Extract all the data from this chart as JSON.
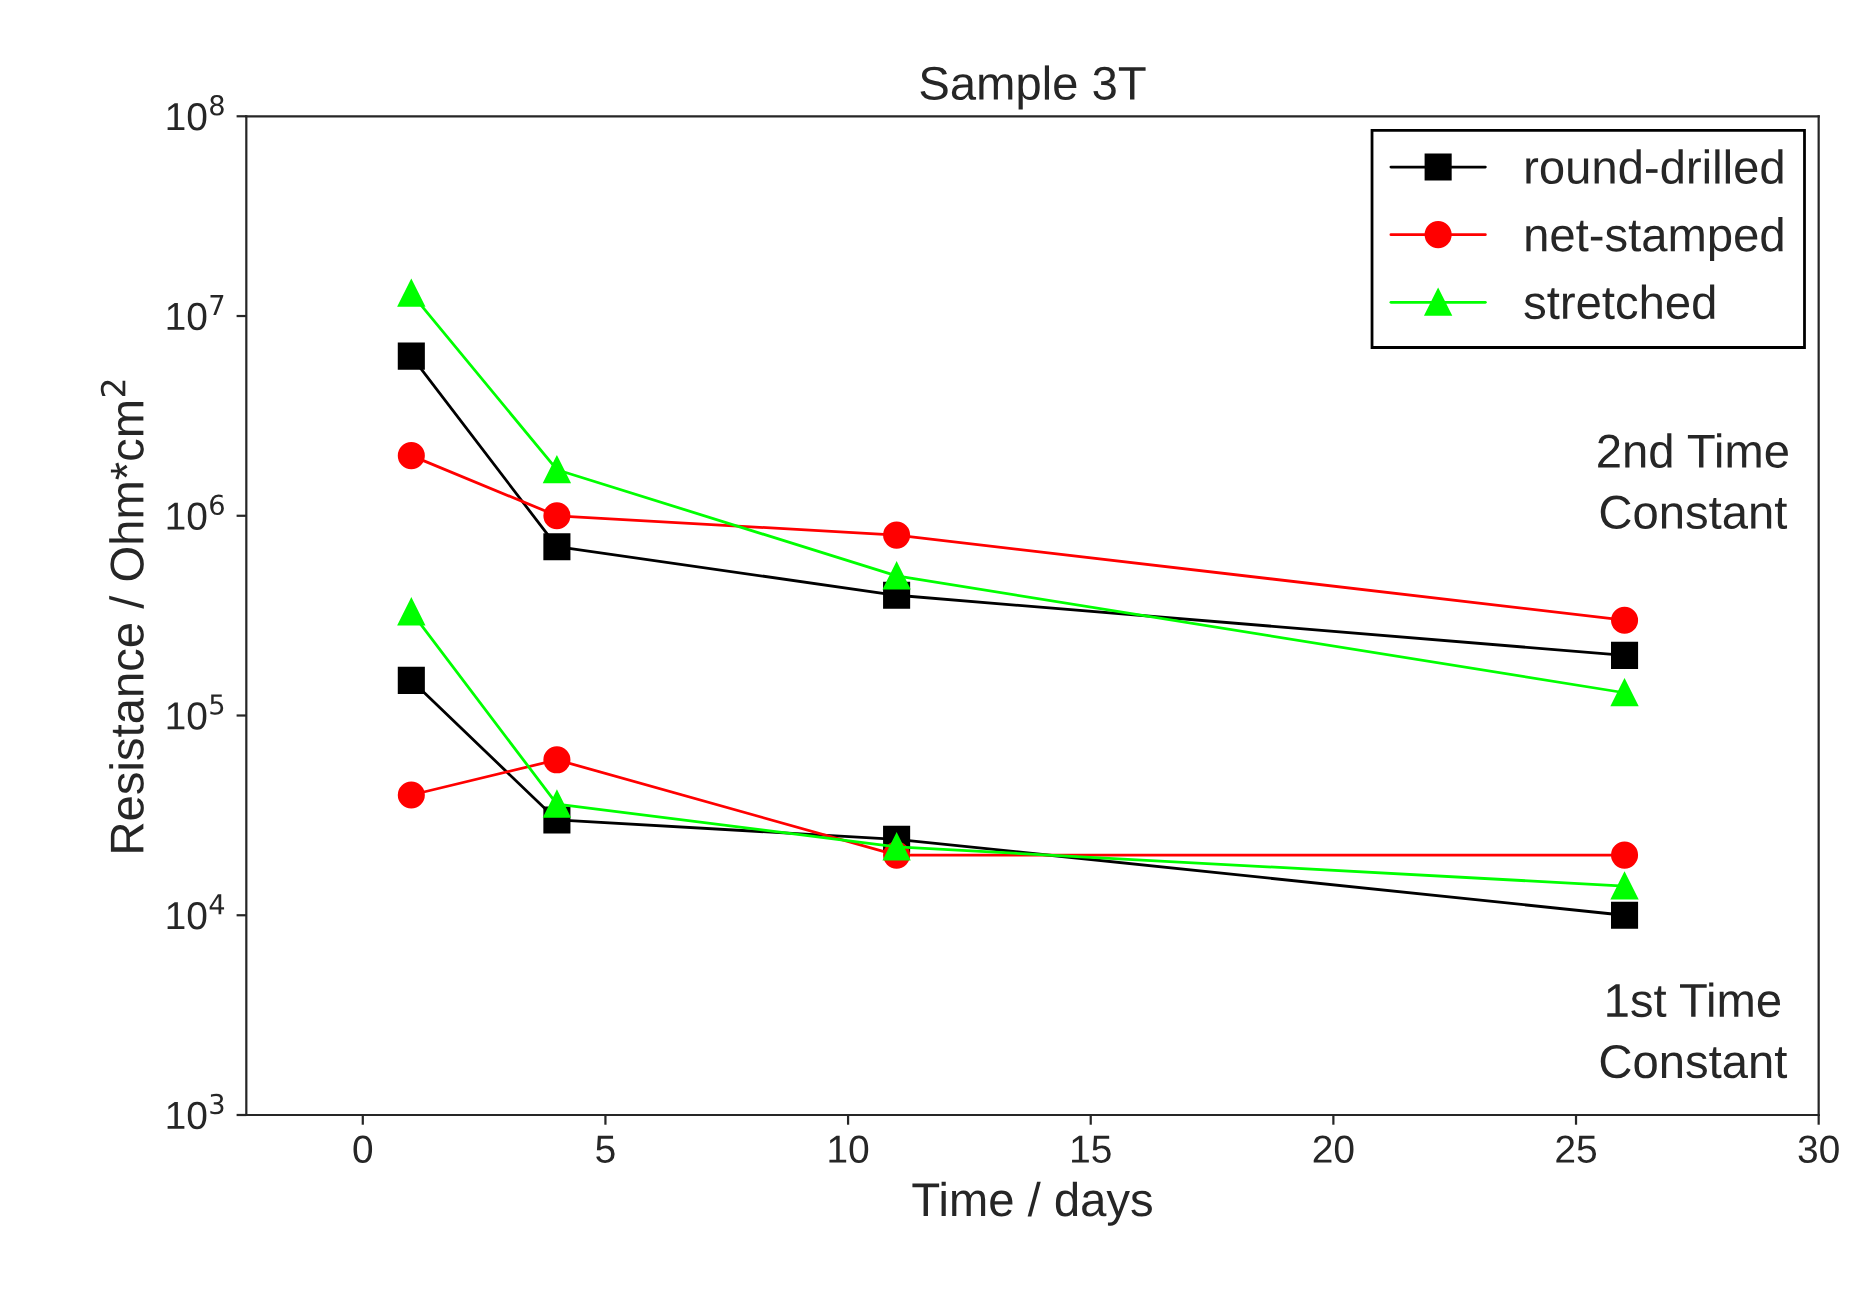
{
  "chart_data": {
    "type": "line",
    "title": "Sample 3T",
    "xlabel": "Time / days",
    "ylabel": "Resistance / Ohm*cm$^{2}$",
    "log": "y",
    "xlim": [
      -2.4,
      30
    ],
    "xticks": [
      0,
      5,
      10,
      15,
      20,
      25,
      30
    ],
    "ylim": [
      1000,
      100000000
    ],
    "yticks": [
      {
        "value": 1000,
        "label": "10$^{3}$"
      },
      {
        "value": 10000,
        "label": "10$^{4}$"
      },
      {
        "value": 100000,
        "label": "10$^{5}$"
      },
      {
        "value": 1000000,
        "label": "10$^{6}$"
      },
      {
        "value": 10000000,
        "label": "10$^{7}$"
      },
      {
        "value": 100000000,
        "label": "10$^{8}$"
      }
    ],
    "grid": false,
    "legend": "top right",
    "series": [
      {
        "name": "round-drilled",
        "color": "#000000",
        "marker": "square",
        "x": [
          1,
          4,
          11,
          26
        ],
        "values": [
          6300000,
          700000,
          400000,
          200000
        ]
      },
      {
        "name": "net-stamped",
        "color": "#ff0000",
        "marker": "circle",
        "x": [
          1,
          4,
          11,
          26
        ],
        "values": [
          2000000,
          1000000,
          800000,
          300000
        ]
      },
      {
        "name": "stretched",
        "color": "#00ff00",
        "marker": "triangle",
        "x": [
          1,
          4,
          11,
          26
        ],
        "values": [
          13000000,
          1700000,
          500000,
          130000
        ]
      },
      {
        "color": "#000000",
        "marker": "square",
        "x": [
          1,
          4,
          11,
          26
        ],
        "values": [
          150000,
          30000,
          24000,
          10000
        ]
      },
      {
        "color": "#ff0000",
        "marker": "circle",
        "x": [
          1,
          4,
          11,
          26
        ],
        "values": [
          40000,
          60000,
          20000,
          20000
        ]
      },
      {
        "color": "#00ff00",
        "marker": "triangle",
        "x": [
          1,
          4,
          11,
          26
        ],
        "values": [
          330000,
          36000,
          22000,
          14000
        ]
      }
    ],
    "annotations": [
      "2nd Time\nConstant",
      "1st Time\nConstant"
    ]
  }
}
